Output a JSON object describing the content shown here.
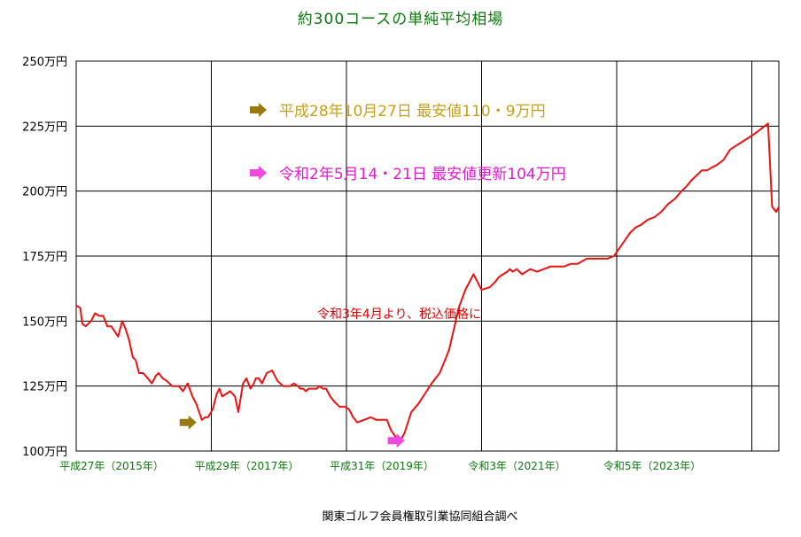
{
  "chart_data": {
    "type": "line",
    "title": "約300コースの単純平均相場",
    "source": "関東ゴルフ会員権取引業協同組合調べ",
    "ylim": [
      100,
      250
    ],
    "y_ticks": [
      {
        "value": 250,
        "label": "250万円"
      },
      {
        "value": 225,
        "label": "225万円"
      },
      {
        "value": 200,
        "label": "200万円"
      },
      {
        "value": 175,
        "label": "175万円"
      },
      {
        "value": 150,
        "label": "150万円"
      },
      {
        "value": 125,
        "label": "125万円"
      },
      {
        "value": 100,
        "label": "100万円"
      }
    ],
    "xlim": [
      2015.0,
      2025.4
    ],
    "x_gridlines": [
      2017.0,
      2019.0,
      2021.0,
      2023.0,
      2025.0
    ],
    "x_ticks": [
      {
        "value": 2015.0,
        "label": "平成27年（2015年）"
      },
      {
        "value": 2017.0,
        "label": "平成29年（2017年）"
      },
      {
        "value": 2019.0,
        "label": "平成31年（2019年）"
      },
      {
        "value": 2021.0,
        "label": "令和3年（2021年）"
      },
      {
        "value": 2023.0,
        "label": "令和5年（2023年）"
      }
    ],
    "grid": true,
    "series": [
      {
        "color": "#ee1111",
        "x": [
          2015.0,
          2015.06,
          2015.09,
          2015.14,
          2015.22,
          2015.28,
          2015.34,
          2015.4,
          2015.46,
          2015.52,
          2015.57,
          2015.62,
          2015.68,
          2015.73,
          2015.78,
          2015.84,
          2015.88,
          2015.93,
          2015.99,
          2016.06,
          2016.12,
          2016.18,
          2016.22,
          2016.28,
          2016.34,
          2016.42,
          2016.46,
          2016.52,
          2016.58,
          2016.65,
          2016.72,
          2016.78,
          2016.86,
          2016.91,
          2016.95,
          2017.02,
          2017.08,
          2017.12,
          2017.16,
          2017.22,
          2017.28,
          2017.35,
          2017.4,
          2017.47,
          2017.52,
          2017.58,
          2017.63,
          2017.66,
          2017.7,
          2017.75,
          2017.82,
          2017.9,
          2017.98,
          2018.02,
          2018.06,
          2018.12,
          2018.17,
          2018.22,
          2018.28,
          2018.32,
          2018.36,
          2018.4,
          2018.44,
          2018.5,
          2018.56,
          2018.6,
          2018.65,
          2018.7,
          2018.76,
          2018.82,
          2018.9,
          2018.98,
          2019.04,
          2019.1,
          2019.16,
          2019.26,
          2019.36,
          2019.44,
          2019.52,
          2019.6,
          2019.66,
          2019.74,
          2019.8,
          2019.86,
          2019.96,
          2020.06,
          2020.16,
          2020.26,
          2020.38,
          2020.46,
          2020.52,
          2020.6,
          2020.66,
          2020.76,
          2020.88,
          2021.0,
          2021.12,
          2021.2,
          2021.26,
          2021.32,
          2021.38,
          2021.42,
          2021.46,
          2021.52,
          2021.6,
          2021.72,
          2021.82,
          2021.92,
          2022.02,
          2022.12,
          2022.22,
          2022.32,
          2022.42,
          2022.56,
          2022.66,
          2022.76,
          2022.86,
          2022.96,
          2023.04,
          2023.12,
          2023.2,
          2023.28,
          2023.36,
          2023.46,
          2023.56,
          2023.66,
          2023.76,
          2023.86,
          2023.96,
          2024.04,
          2024.1,
          2024.18,
          2024.26,
          2024.34,
          2024.4,
          2024.48,
          2024.58,
          2024.68,
          2024.8,
          2024.92,
          2025.04,
          2025.14,
          2025.24,
          2025.3,
          2025.36,
          2025.4
        ],
        "y": [
          156,
          155,
          149,
          148,
          150,
          153,
          152,
          152,
          148,
          148,
          146,
          144,
          150,
          147,
          143,
          136,
          135,
          130,
          130,
          128,
          126,
          129,
          130,
          128,
          127,
          125,
          125,
          125,
          123,
          126,
          121,
          118,
          112,
          113,
          113,
          116,
          122,
          124,
          121,
          122,
          123,
          121,
          115,
          126,
          128,
          124,
          126,
          128,
          128,
          126,
          130,
          131,
          127,
          126,
          125,
          125,
          125,
          126,
          125,
          124,
          124,
          123,
          124,
          124,
          124,
          125,
          124,
          124,
          121,
          119,
          117,
          117,
          116,
          113,
          111,
          112,
          113,
          112,
          112,
          112,
          108,
          105,
          104,
          107,
          115,
          118,
          122,
          126,
          130,
          135,
          139,
          148,
          155,
          162,
          168,
          162,
          163,
          165,
          167,
          168,
          169,
          170,
          169,
          170,
          168,
          170,
          169,
          170,
          171,
          171,
          171,
          172,
          172,
          174,
          174,
          174,
          174,
          175,
          178,
          181,
          184,
          186,
          187,
          189,
          190,
          192,
          195,
          197,
          200,
          202,
          204,
          206,
          208,
          208,
          209,
          210,
          212,
          216,
          218,
          220,
          222,
          224,
          226,
          194,
          192,
          194
        ],
        "line_width": 2
      }
    ],
    "annotations": [
      {
        "text": "平成28年10月27日  最安値110・9万円",
        "color": "#c9a015",
        "marker_x": 2016.82,
        "marker_y": 111
      },
      {
        "text": "令和2年5月14・21日  最安値更新104万円",
        "color": "#e21bd0",
        "marker_x": 2019.9,
        "marker_y": 104
      },
      {
        "text": "令和3年4月より、税込価格に",
        "color": "#e00000"
      }
    ]
  }
}
